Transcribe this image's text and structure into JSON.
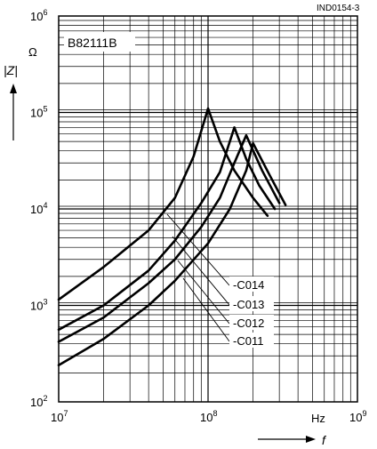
{
  "doc_code": "IND0154-3",
  "chart_data": {
    "type": "line",
    "title": "B82111B",
    "xlabel": "f",
    "x_unit": "Hz",
    "ylabel": "|Z|",
    "y_unit": "Ω",
    "xscale": "log",
    "yscale": "log",
    "xlim": [
      10000000,
      1000000000
    ],
    "ylim": [
      100,
      1000000
    ],
    "grid": true,
    "x_ticks": [
      {
        "base": "10",
        "exp": "7"
      },
      {
        "base": "10",
        "exp": "8"
      },
      {
        "base": "10",
        "exp": "9"
      }
    ],
    "y_ticks": [
      {
        "base": "10",
        "exp": "2"
      },
      {
        "base": "10",
        "exp": "3"
      },
      {
        "base": "10",
        "exp": "4"
      },
      {
        "base": "10",
        "exp": "5"
      },
      {
        "base": "10",
        "exp": "6"
      }
    ],
    "series": [
      {
        "name": "-C014",
        "x": [
          10000000,
          20000000,
          40000000,
          60000000,
          80000000,
          100000000,
          120000000,
          150000000,
          200000000,
          250000000
        ],
        "y": [
          1150,
          2500,
          6000,
          13000,
          35000,
          110000,
          50000,
          25000,
          13000,
          8500
        ]
      },
      {
        "name": "-C013",
        "x": [
          10000000,
          20000000,
          40000000,
          60000000,
          90000000,
          120000000,
          150000000,
          180000000,
          220000000,
          280000000
        ],
        "y": [
          560,
          1000,
          2300,
          4700,
          11500,
          24000,
          70000,
          33000,
          17500,
          10000
        ]
      },
      {
        "name": "-C012",
        "x": [
          10000000,
          20000000,
          40000000,
          60000000,
          90000000,
          120000000,
          150000000,
          180000000,
          230000000,
          300000000
        ],
        "y": [
          420,
          750,
          1700,
          3000,
          6500,
          13000,
          30000,
          58000,
          25000,
          11500
        ]
      },
      {
        "name": "-C011",
        "x": [
          10000000,
          20000000,
          40000000,
          60000000,
          100000000,
          140000000,
          180000000,
          200000000,
          260000000,
          330000000
        ],
        "y": [
          240,
          450,
          1000,
          1800,
          4400,
          10000,
          25000,
          48000,
          22000,
          11000
        ]
      }
    ]
  }
}
